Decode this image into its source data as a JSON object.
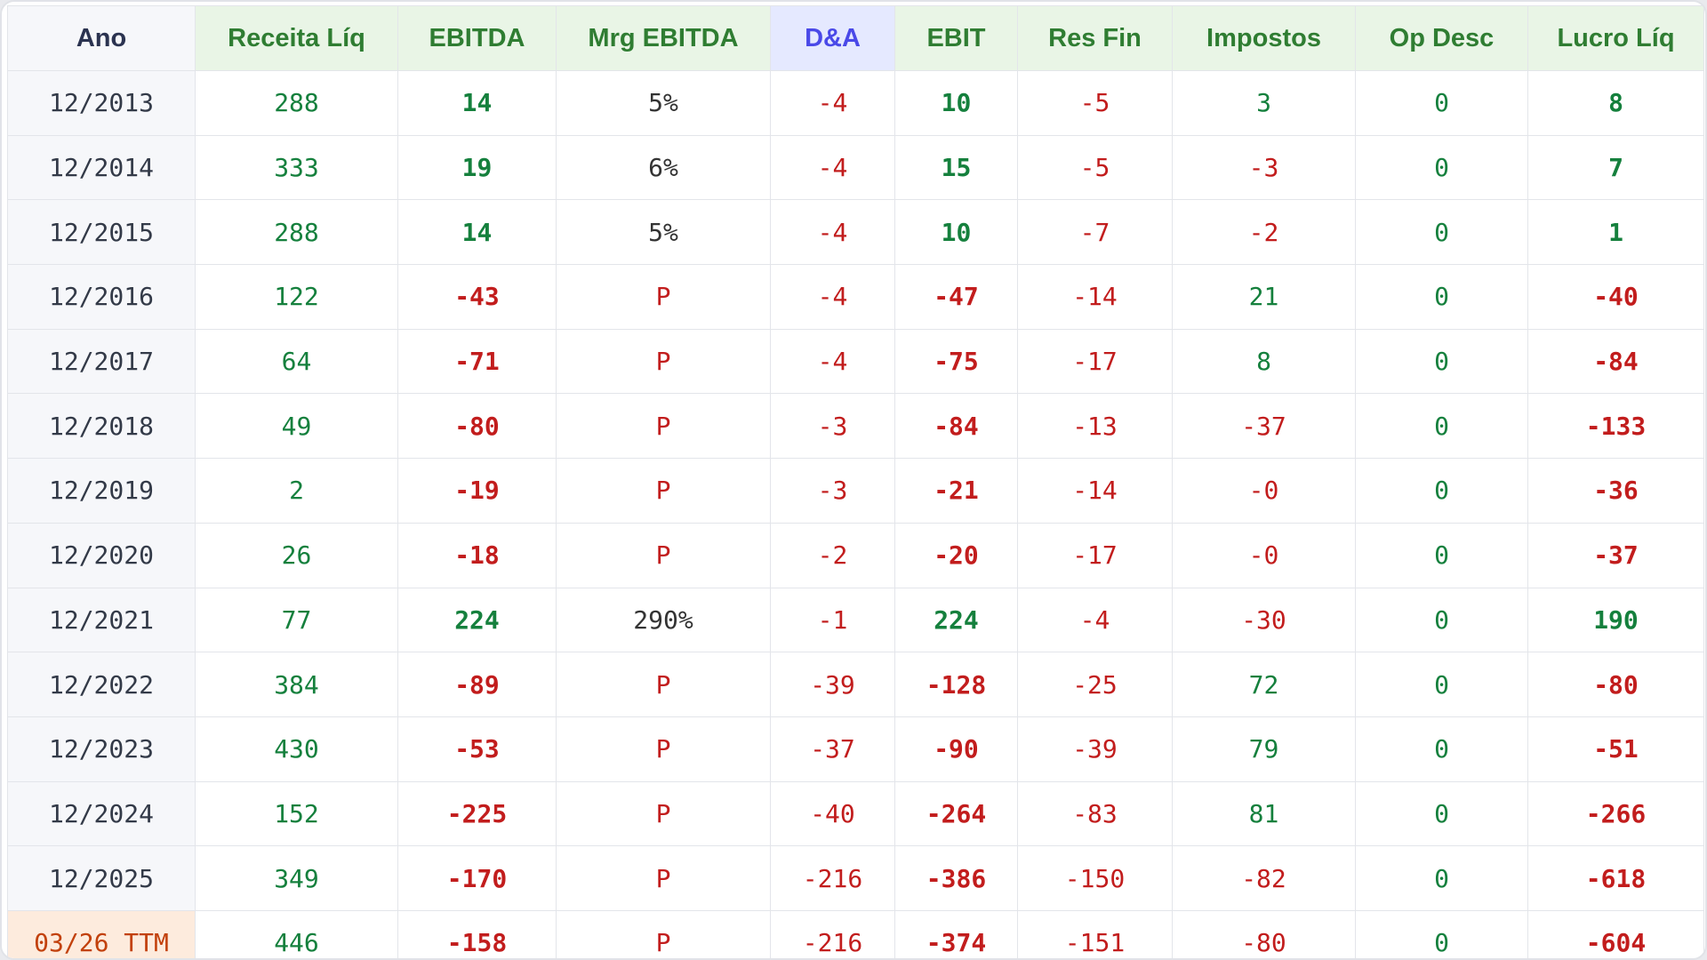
{
  "columns": [
    "Ano",
    "Receita Líq",
    "EBITDA",
    "Mrg EBITDA",
    "D&A",
    "EBIT",
    "Res Fin",
    "Impostos",
    "Op Desc",
    "Lucro Líq"
  ],
  "rows": [
    [
      "12/2013",
      "288",
      "14",
      "5%",
      "-4",
      "10",
      "-5",
      "3",
      "0",
      "8"
    ],
    [
      "12/2014",
      "333",
      "19",
      "6%",
      "-4",
      "15",
      "-5",
      "-3",
      "0",
      "7"
    ],
    [
      "12/2015",
      "288",
      "14",
      "5%",
      "-4",
      "10",
      "-7",
      "-2",
      "0",
      "1"
    ],
    [
      "12/2016",
      "122",
      "-43",
      "P",
      "-4",
      "-47",
      "-14",
      "21",
      "0",
      "-40"
    ],
    [
      "12/2017",
      "64",
      "-71",
      "P",
      "-4",
      "-75",
      "-17",
      "8",
      "0",
      "-84"
    ],
    [
      "12/2018",
      "49",
      "-80",
      "P",
      "-3",
      "-84",
      "-13",
      "-37",
      "0",
      "-133"
    ],
    [
      "12/2019",
      "2",
      "-19",
      "P",
      "-3",
      "-21",
      "-14",
      "-0",
      "0",
      "-36"
    ],
    [
      "12/2020",
      "26",
      "-18",
      "P",
      "-2",
      "-20",
      "-17",
      "-0",
      "0",
      "-37"
    ],
    [
      "12/2021",
      "77",
      "224",
      "290%",
      "-1",
      "224",
      "-4",
      "-30",
      "0",
      "190"
    ],
    [
      "12/2022",
      "384",
      "-89",
      "P",
      "-39",
      "-128",
      "-25",
      "72",
      "0",
      "-80"
    ],
    [
      "12/2023",
      "430",
      "-53",
      "P",
      "-37",
      "-90",
      "-39",
      "79",
      "0",
      "-51"
    ],
    [
      "12/2024",
      "152",
      "-225",
      "P",
      "-40",
      "-264",
      "-83",
      "81",
      "0",
      "-266"
    ],
    [
      "12/2025",
      "349",
      "-170",
      "P",
      "-216",
      "-386",
      "-150",
      "-82",
      "0",
      "-618"
    ],
    [
      "03/26 TTM",
      "446",
      "-158",
      "P",
      "-216",
      "-374",
      "-151",
      "-80",
      "0",
      "-604"
    ]
  ],
  "colors": {
    "positive": "#15803d",
    "negative": "#c21d1d",
    "header_green": "#2f7d32",
    "header_da": "#4a49e8",
    "ttm_highlight": "#c2410c"
  }
}
